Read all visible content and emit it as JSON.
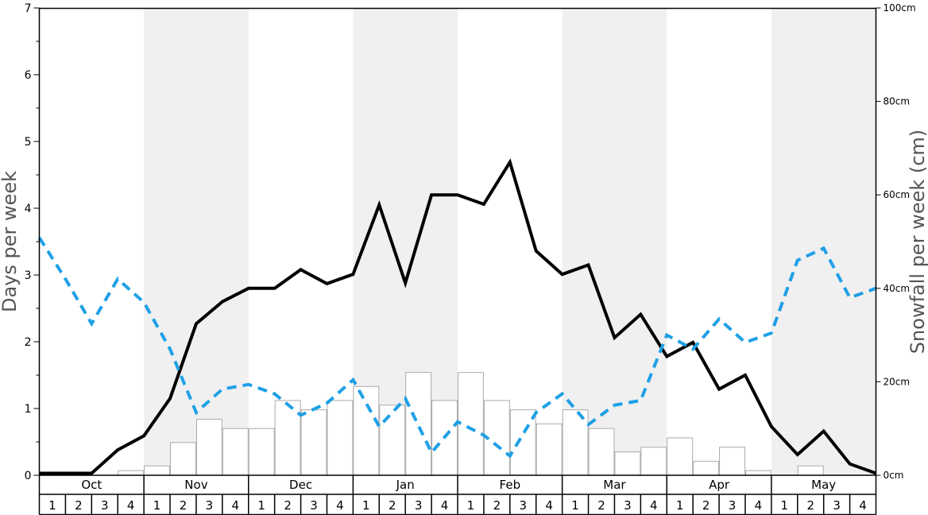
{
  "colors": {
    "band": "#f0f0f0",
    "bar_fill": "#ffffff",
    "bar_stroke": "#aaaaaa",
    "line_black": "#000000",
    "line_blue": "#1ea0e6"
  },
  "chart_data": {
    "type": "bar",
    "left_axis": {
      "title": "Days per week",
      "ylim": [
        0,
        7
      ],
      "ticks": [
        "0",
        "1",
        "2",
        "3",
        "4",
        "5",
        "6",
        "7"
      ]
    },
    "right_axis": {
      "title": "Snowfall per week (cm)",
      "ylim": [
        0,
        100
      ],
      "ticks": [
        "0cm",
        "20cm",
        "40cm",
        "60cm",
        "80cm",
        "100cm"
      ]
    },
    "months": [
      "Oct",
      "Nov",
      "Dec",
      "Jan",
      "Feb",
      "Mar",
      "Apr",
      "May"
    ],
    "weeks": [
      "1",
      "2",
      "3",
      "4"
    ],
    "grid": false,
    "series": [
      {
        "type": "bar",
        "axis": "right",
        "values": [
          0,
          0,
          0,
          1,
          2,
          7,
          12,
          10,
          10,
          16,
          14,
          16,
          19,
          15,
          22,
          16,
          22,
          16,
          14,
          11,
          14,
          10,
          5,
          6,
          8,
          3,
          6,
          1,
          0,
          2,
          0,
          0
        ]
      },
      {
        "type": "line",
        "axis": "left",
        "style": "solid",
        "color": "black",
        "values": [
          0.03,
          0.03,
          0.03,
          0.38,
          0.59,
          1.15,
          2.27,
          2.6,
          2.8,
          2.8,
          3.08,
          2.87,
          3.01,
          4.05,
          2.88,
          4.2,
          4.2,
          4.06,
          4.69,
          3.36,
          3.01,
          3.15,
          2.06,
          2.41,
          1.78,
          1.99,
          1.29,
          1.5,
          0.73,
          0.31,
          0.66,
          0.17,
          0.03
        ]
      },
      {
        "type": "line",
        "axis": "left",
        "style": "dashed",
        "color": "blue",
        "values": [
          3.56,
          2.94,
          2.27,
          2.94,
          2.59,
          1.89,
          0.94,
          1.29,
          1.36,
          1.22,
          0.9,
          1.08,
          1.43,
          0.73,
          1.15,
          0.34,
          0.8,
          0.6,
          0.29,
          0.94,
          1.22,
          0.76,
          1.05,
          1.12,
          2.1,
          1.89,
          2.34,
          1.99,
          2.13,
          3.22,
          3.4,
          2.66,
          2.8
        ]
      }
    ]
  }
}
